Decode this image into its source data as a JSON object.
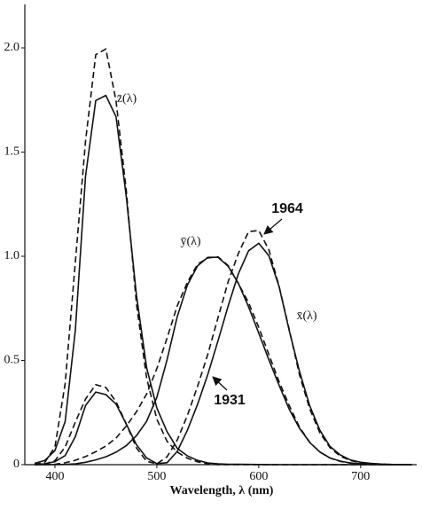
{
  "chart_data": {
    "type": "line",
    "x_label": "Wavelength, λ (nm)",
    "x": [
      380,
      390,
      400,
      410,
      420,
      430,
      440,
      450,
      460,
      470,
      480,
      490,
      500,
      510,
      520,
      530,
      540,
      550,
      560,
      570,
      580,
      590,
      600,
      610,
      620,
      630,
      640,
      650,
      660,
      670,
      680,
      690,
      700,
      710,
      720,
      730,
      740,
      750
    ],
    "series": [
      {
        "color": "#111111",
        "dash": false,
        "values": [
          0.0065,
          0.0201,
          0.0679,
          0.2074,
          0.6456,
          1.3856,
          1.7471,
          1.7721,
          1.6692,
          1.2876,
          0.813,
          0.4652,
          0.272,
          0.1582,
          0.0782,
          0.0422,
          0.0203,
          0.0087,
          0.0039,
          0.0021,
          0.0017,
          0.0011,
          0.0008,
          0.0003,
          0.0002,
          0,
          0,
          0,
          0,
          0,
          0,
          0,
          0,
          0,
          0,
          0,
          0,
          0
        ]
      },
      {
        "color": "#111111",
        "dash": false,
        "values": [
          0.0014,
          0.0042,
          0.0143,
          0.0435,
          0.1344,
          0.2839,
          0.3483,
          0.3362,
          0.2908,
          0.1954,
          0.0956,
          0.032,
          0.0049,
          0.0093,
          0.0633,
          0.1655,
          0.2904,
          0.4334,
          0.5945,
          0.7621,
          0.9163,
          1.0263,
          1.0622,
          1.0026,
          0.8544,
          0.6424,
          0.4479,
          0.2835,
          0.1649,
          0.0874,
          0.0468,
          0.0227,
          0.0114,
          0.0058,
          0.0029,
          0.0014,
          0.0007,
          0.0003
        ]
      },
      {
        "color": "#111111",
        "dash": false,
        "values": [
          0,
          0.0001,
          0.0004,
          0.0012,
          0.004,
          0.0116,
          0.023,
          0.038,
          0.06,
          0.091,
          0.139,
          0.208,
          0.323,
          0.503,
          0.71,
          0.862,
          0.954,
          0.995,
          0.995,
          0.952,
          0.87,
          0.757,
          0.631,
          0.503,
          0.381,
          0.265,
          0.175,
          0.107,
          0.061,
          0.032,
          0.017,
          0.0082,
          0.0041,
          0.0021,
          0.001,
          0.0005,
          0.0002,
          0.0001
        ]
      },
      {
        "color": "#111111",
        "dash": true,
        "values": [
          0.0007,
          0.0105,
          0.086,
          0.3894,
          0.9725,
          1.5535,
          1.9673,
          1.9948,
          1.7454,
          1.3176,
          0.7721,
          0.4153,
          0.2185,
          0.112,
          0.0607,
          0.0305,
          0.0137,
          0.004,
          0,
          0,
          0,
          0,
          0,
          0,
          0,
          0,
          0,
          0,
          0,
          0,
          0,
          0,
          0,
          0,
          0,
          0,
          0,
          0
        ]
      },
      {
        "color": "#111111",
        "dash": true,
        "values": [
          0.0002,
          0.0024,
          0.0191,
          0.0847,
          0.2045,
          0.3147,
          0.3837,
          0.3707,
          0.3023,
          0.1956,
          0.0805,
          0.0162,
          0.0038,
          0.0375,
          0.1177,
          0.2365,
          0.3768,
          0.5298,
          0.7052,
          0.8787,
          1.0142,
          1.1185,
          1.124,
          1.0305,
          0.8563,
          0.6475,
          0.4316,
          0.2683,
          0.1526,
          0.0813,
          0.0409,
          0.0199,
          0.0096,
          0.0046,
          0.0022,
          0.001,
          0.0005,
          0.0003
        ]
      },
      {
        "color": "#111111",
        "dash": true,
        "values": [
          0,
          0.0003,
          0.002,
          0.0088,
          0.0214,
          0.0387,
          0.0621,
          0.0895,
          0.1282,
          0.1852,
          0.2536,
          0.3391,
          0.4608,
          0.6067,
          0.7618,
          0.8752,
          0.962,
          0.9918,
          0.9973,
          0.9555,
          0.8689,
          0.7774,
          0.6583,
          0.528,
          0.3981,
          0.2835,
          0.1798,
          0.1076,
          0.0603,
          0.0318,
          0.0159,
          0.0077,
          0.0037,
          0.0018,
          0.0008,
          0.0004,
          0.0002,
          0.0001
        ]
      }
    ],
    "annotations": [
      "z̄(λ)",
      "ȳ(λ)",
      "x̄(λ)",
      "1964",
      "1931"
    ],
    "xlim": [
      370,
      755
    ],
    "ylim": [
      0,
      2.2
    ],
    "xticks": [
      400,
      500,
      600,
      700
    ],
    "yticks": [
      {
        "value": 0,
        "label": "0"
      },
      {
        "value": 0.5,
        "label": "0.5"
      },
      {
        "value": 1,
        "label": "1.0"
      },
      {
        "value": 1.5,
        "label": "1.5"
      },
      {
        "value": 2,
        "label": "2.0"
      }
    ]
  }
}
